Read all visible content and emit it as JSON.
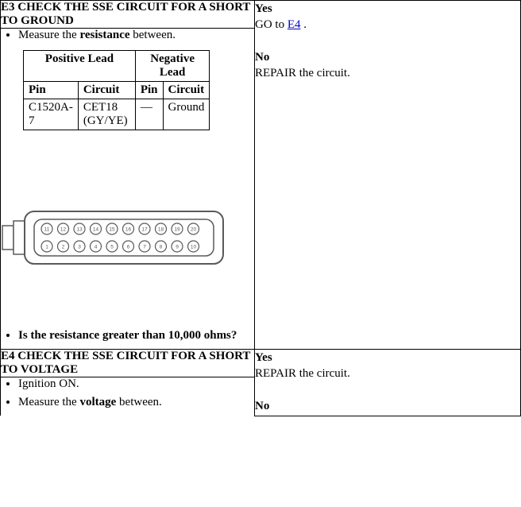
{
  "colors": {
    "text": "#000000",
    "bg": "#ffffff",
    "border": "#000000",
    "link": "#0000cc",
    "connector_stroke": "#5a5a5a",
    "connector_fill": "#ffffff"
  },
  "e3": {
    "header": "E3 CHECK THE SSE CIRCUIT FOR A SHORT TO GROUND",
    "step1_pre": "Measure the ",
    "step1_bold": "resistance",
    "step1_post": " between.",
    "meas": {
      "group_pos": "Positive Lead",
      "group_neg": "Negative Lead",
      "h_pin": "Pin",
      "h_circuit": "Circuit",
      "row": {
        "pos_pin": "C1520A-7",
        "pos_circuit": "CET18 (GY/YE)",
        "neg_pin": "—",
        "neg_circuit": "Ground"
      }
    },
    "question": "Is the resistance greater than 10,000 ohms?",
    "yes_label": "Yes",
    "yes_pre": "GO to ",
    "yes_link": "E4",
    "yes_post": " .",
    "no_label": "No",
    "no_text": "REPAIR the circuit."
  },
  "e4": {
    "header": "E4 CHECK THE SSE CIRCUIT FOR A SHORT TO VOLTAGE",
    "step1": "Ignition ON.",
    "step2_pre": "Measure the ",
    "step2_bold": "voltage",
    "step2_post": " between.",
    "yes_label": "Yes",
    "yes_text": "REPAIR the circuit.",
    "no_label": "No"
  },
  "connector": {
    "top_row_count": 10,
    "bottom_row_count": 10,
    "top_start": 11,
    "bottom_start": 1
  }
}
